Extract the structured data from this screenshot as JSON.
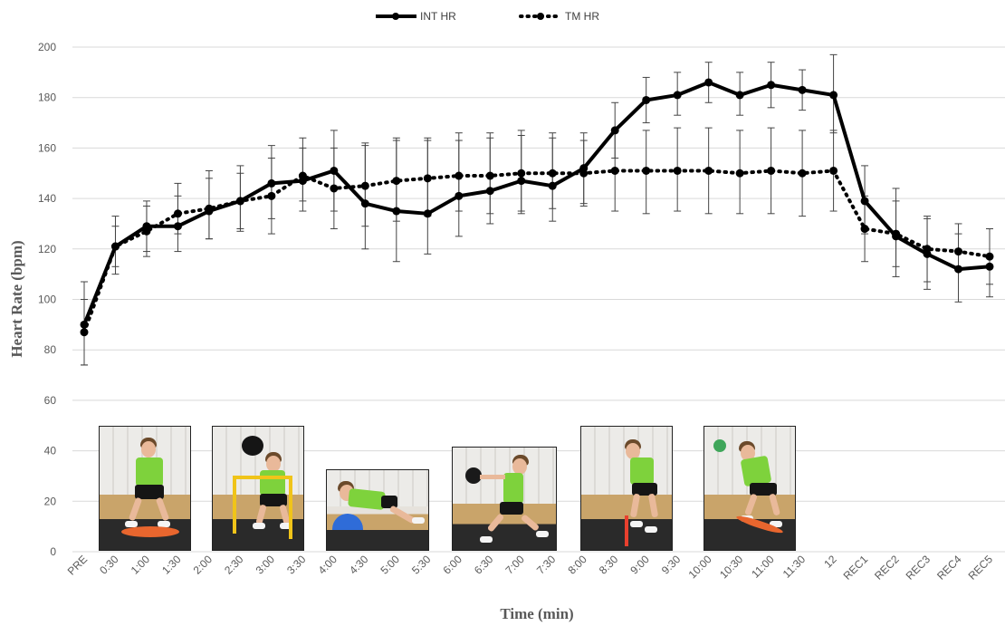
{
  "chart_data": {
    "type": "line",
    "title": "",
    "xlabel": "Time (min)",
    "ylabel": "Heart Rate (bpm)",
    "ylim": [
      0,
      200
    ],
    "yticks": [
      0,
      20,
      40,
      60,
      80,
      100,
      120,
      140,
      160,
      180,
      200
    ],
    "grid": true,
    "legend_position": "top-center",
    "categories": [
      "PRE",
      "0:30",
      "1:00",
      "1:30",
      "2:00",
      "2:30",
      "3:00",
      "3:30",
      "4:00",
      "4:30",
      "5:00",
      "5:30",
      "6:00",
      "6:30",
      "7:00",
      "7:30",
      "8:00",
      "8:30",
      "9:00",
      "9:30",
      "10:00",
      "10:30",
      "11:00",
      "11:30",
      "12",
      "REC1",
      "REC2",
      "REC3",
      "REC4",
      "REC5"
    ],
    "series": [
      {
        "name": "INT HR",
        "style": "solid",
        "color": "#000000",
        "values": [
          90,
          121,
          129,
          129,
          135,
          139,
          146,
          147,
          151,
          138,
          135,
          134,
          141,
          143,
          147,
          145,
          152,
          167,
          179,
          181,
          186,
          181,
          185,
          183,
          181,
          139,
          125,
          118,
          112,
          113
        ],
        "err_upper": [
          107,
          133,
          139,
          146,
          151,
          153,
          161,
          164,
          167,
          162,
          164,
          164,
          166,
          166,
          167,
          166,
          166,
          178,
          188,
          190,
          194,
          190,
          194,
          191,
          197,
          153,
          144,
          132,
          130,
          128
        ],
        "err_lower": [
          74,
          110,
          119,
          119,
          124,
          127,
          132,
          135,
          135,
          120,
          115,
          118,
          125,
          130,
          134,
          131,
          138,
          156,
          170,
          173,
          178,
          173,
          176,
          175,
          166,
          126,
          109,
          104,
          99,
          101
        ]
      },
      {
        "name": "TM HR",
        "style": "dotted",
        "color": "#000000",
        "values": [
          87,
          121,
          127,
          134,
          136,
          139,
          141,
          149,
          144,
          145,
          147,
          148,
          149,
          149,
          150,
          150,
          150,
          151,
          151,
          151,
          151,
          150,
          151,
          150,
          151,
          128,
          126,
          120,
          119,
          117
        ],
        "err_upper": [
          100,
          129,
          137,
          141,
          148,
          150,
          156,
          160,
          160,
          161,
          163,
          163,
          163,
          164,
          165,
          164,
          163,
          167,
          167,
          168,
          168,
          167,
          168,
          167,
          167,
          141,
          139,
          133,
          126,
          128
        ],
        "err_lower": [
          74,
          113,
          117,
          126,
          124,
          128,
          126,
          139,
          128,
          129,
          131,
          133,
          135,
          134,
          135,
          136,
          137,
          135,
          134,
          135,
          134,
          134,
          134,
          133,
          135,
          115,
          113,
          107,
          112,
          106
        ]
      }
    ]
  },
  "photos": [
    {
      "label": "balance-board-squat"
    },
    {
      "label": "hurdle-medicine-ball"
    },
    {
      "label": "bosu-plank"
    },
    {
      "label": "medicine-ball-lunge"
    },
    {
      "label": "agility-jump"
    },
    {
      "label": "balance-board-throw"
    }
  ]
}
